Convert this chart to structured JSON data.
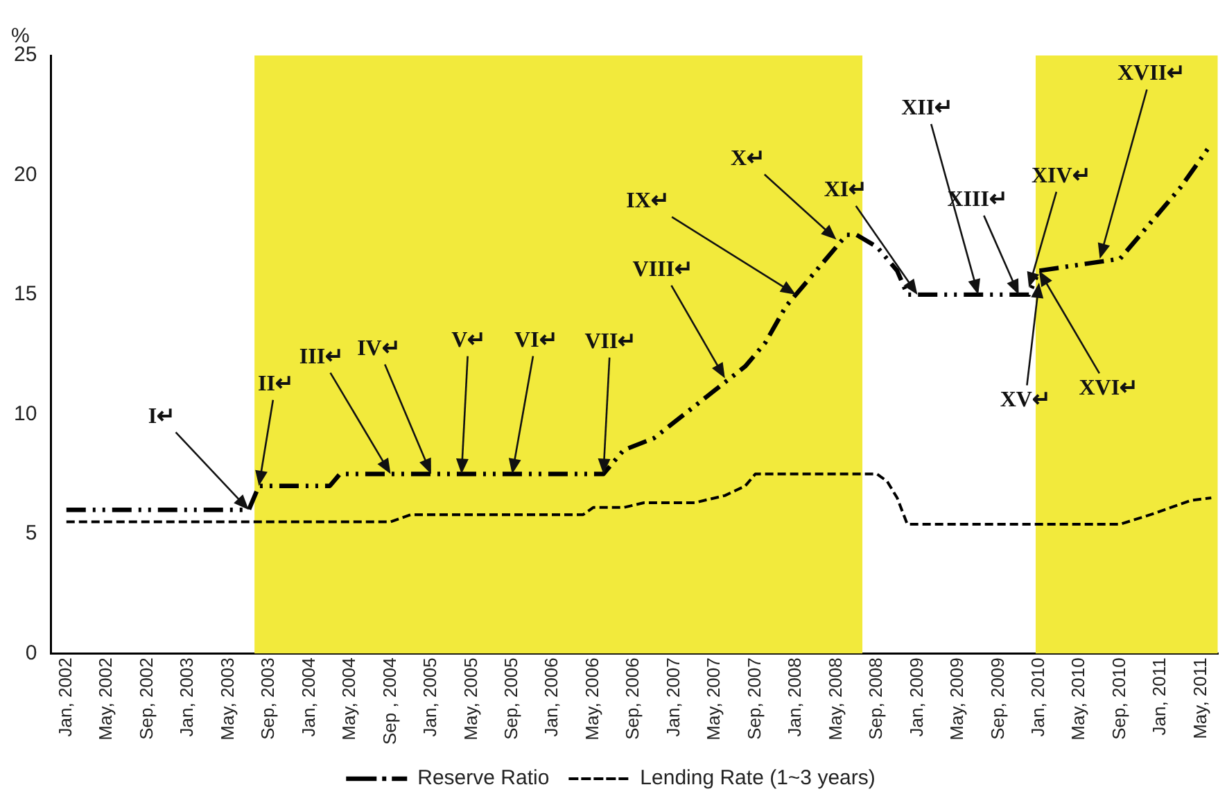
{
  "chart_data": {
    "type": "line",
    "ylabel": "%",
    "xlim": [
      "2001-11-15",
      "2011-06-20"
    ],
    "xticks": [
      {
        "value": "2002-01",
        "label": "Jan, 2002"
      },
      {
        "value": "2002-05",
        "label": "May, 2002"
      },
      {
        "value": "2002-09",
        "label": "Sep, 2002"
      },
      {
        "value": "2003-01",
        "label": "Jan, 2003"
      },
      {
        "value": "2003-05",
        "label": "May, 2003"
      },
      {
        "value": "2003-09",
        "label": "Sep, 2003"
      },
      {
        "value": "2004-01",
        "label": "Jan, 2004"
      },
      {
        "value": "2004-05",
        "label": "May, 2004"
      },
      {
        "value": "2004-09",
        "label": "Sep , 2004"
      },
      {
        "value": "2005-01",
        "label": "Jan, 2005"
      },
      {
        "value": "2005-05",
        "label": "May, 2005"
      },
      {
        "value": "2005-09",
        "label": "Sep, 2005"
      },
      {
        "value": "2006-01",
        "label": "Jan, 2006"
      },
      {
        "value": "2006-05",
        "label": "May, 2006"
      },
      {
        "value": "2006-09",
        "label": "Sep, 2006"
      },
      {
        "value": "2007-01",
        "label": "Jan, 2007"
      },
      {
        "value": "2007-05",
        "label": "May, 2007"
      },
      {
        "value": "2007-09",
        "label": "Sep, 2007"
      },
      {
        "value": "2008-01",
        "label": "Jan, 2008"
      },
      {
        "value": "2008-05",
        "label": "May, 2008"
      },
      {
        "value": "2008-09",
        "label": "Sep, 2008"
      },
      {
        "value": "2009-01",
        "label": "Jan, 2009"
      },
      {
        "value": "2009-05",
        "label": "May, 2009"
      },
      {
        "value": "2009-09",
        "label": "Sep, 2009"
      },
      {
        "value": "2010-01",
        "label": "Jan, 2010"
      },
      {
        "value": "2010-05",
        "label": "May, 2010"
      },
      {
        "value": "2010-09",
        "label": "Sep, 2010"
      },
      {
        "value": "2011-01",
        "label": "Jan, 2011"
      },
      {
        "value": "2011-05",
        "label": "May, 2011"
      }
    ],
    "ylim": [
      0,
      25
    ],
    "yticks": [
      0,
      5,
      10,
      15,
      20,
      25
    ],
    "grid": false,
    "legend": "bottom",
    "marker": "none",
    "series": [
      {
        "name": "Reserve Ratio",
        "color": "#000000",
        "line_style": "dashed",
        "x": [
          "2002-01",
          "2003-07",
          "2003-08",
          "2004-03",
          "2004-04",
          "2006-06",
          "2006-08",
          "2006-11",
          "2007-02",
          "2007-05",
          "2007-08",
          "2007-10",
          "2007-12",
          "2008-03",
          "2008-06",
          "2008-07",
          "2008-09",
          "2008-11",
          "2008-12",
          "2009-12",
          "2010-01",
          "2010-09",
          "2010-12",
          "2011-03",
          "2011-06"
        ],
        "values": [
          6,
          6,
          7,
          7,
          7.5,
          7.5,
          8.5,
          9,
          10,
          11,
          12,
          13,
          14.5,
          16,
          17.5,
          17.5,
          17,
          16,
          15,
          15,
          16,
          16.5,
          18,
          19.5,
          21.3
        ]
      },
      {
        "name": "Lending Rate (1~3 years)",
        "color": "#000000",
        "line_style": "dashed",
        "x": [
          "2002-01",
          "2004-09",
          "2004-11",
          "2006-04",
          "2006-05",
          "2006-08",
          "2006-10",
          "2007-03",
          "2007-06",
          "2007-08",
          "2007-09",
          "2008-09",
          "2008-10",
          "2008-11",
          "2008-12",
          "2010-09",
          "2010-12",
          "2011-02",
          "2011-04",
          "2011-06"
        ],
        "values": [
          5.5,
          5.5,
          5.8,
          5.8,
          6.1,
          6.1,
          6.3,
          6.3,
          6.6,
          7,
          7.5,
          7.5,
          7.2,
          6.5,
          5.4,
          5.4,
          5.8,
          6.1,
          6.4,
          6.5
        ]
      }
    ],
    "bands": [
      {
        "axis": "x",
        "from": "2003-07-18",
        "to": "2008-07-18",
        "color": "#f2ea3c"
      },
      {
        "axis": "x",
        "from": "2009-12-21",
        "to": "2011-06-20",
        "color": "#f2ea3c"
      }
    ],
    "annotations": [
      {
        "text": "I↵",
        "x": "2003-07",
        "y": 6
      },
      {
        "text": "II↵",
        "x": "2003-08",
        "y": 7
      },
      {
        "text": "III↵",
        "x": "2004-09",
        "y": 7.5
      },
      {
        "text": "IV↵",
        "x": "2005-01",
        "y": 7.5
      },
      {
        "text": "V↵",
        "x": "2005-04",
        "y": 7.5
      },
      {
        "text": "VI↵",
        "x": "2005-09",
        "y": 7.5
      },
      {
        "text": "VII↵",
        "x": "2006-06",
        "y": 7.5
      },
      {
        "text": "VIII↵",
        "x": "2007-06",
        "y": 11.5
      },
      {
        "text": "IX↵",
        "x": "2008-01",
        "y": 15
      },
      {
        "text": "X↵",
        "x": "2008-05",
        "y": 17.3
      },
      {
        "text": "XI↵",
        "x": "2009-01",
        "y": 15
      },
      {
        "text": "XII↵",
        "x": "2009-07",
        "y": 15
      },
      {
        "text": "XIII↵",
        "x": "2009-11",
        "y": 15
      },
      {
        "text": "XIV↵",
        "x": "2009-12",
        "y": 15.3
      },
      {
        "text": "XV↵",
        "x": "2010-01",
        "y": 15.5
      },
      {
        "text": "XVI↵",
        "x": "2010-01",
        "y": 16
      },
      {
        "text": "XVII↵",
        "x": "2010-07",
        "y": 16.5
      }
    ]
  }
}
